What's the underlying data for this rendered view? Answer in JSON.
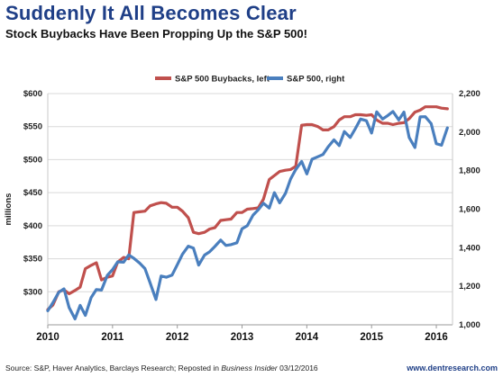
{
  "header": {
    "title": "Suddenly It All Becomes Clear",
    "subtitle": "Stock Buybacks Have Been Propping Up the S&P 500!"
  },
  "footer": {
    "source_prefix": "Source: S&P, Haver Analytics, Barclays Research; Reposted in ",
    "source_pub": "Business Insider",
    "source_date": " 03/12/2016",
    "site": "www.dentresearch.com"
  },
  "colors": {
    "buybacks": "#c0504d",
    "sp500": "#4a7fbe",
    "title": "#1f3f87",
    "grid": "#d9d9d9"
  },
  "chart_data": {
    "type": "line",
    "title": "Suddenly It All Becomes Clear",
    "subtitle": "Stock Buybacks Have Been Propping Up the S&P 500!",
    "legend_position": "top-center",
    "grid": true,
    "x_axis": {
      "range": [
        2010.0,
        2016.25
      ],
      "tick_values": [
        2010,
        2011,
        2012,
        2013,
        2014,
        2015,
        2016
      ],
      "tick_labels": [
        "2010",
        "2011",
        "2012",
        "2013",
        "2014",
        "2015",
        "2016"
      ]
    },
    "y_left": {
      "label": "millions",
      "range": [
        250,
        600
      ],
      "tick_values": [
        300,
        350,
        400,
        450,
        500,
        550,
        600
      ],
      "tick_labels": [
        "$300",
        "$350",
        "$400",
        "$450",
        "$500",
        "$550",
        "$600"
      ]
    },
    "y_right": {
      "range": [
        1000,
        2200
      ],
      "tick_values": [
        1000,
        1200,
        1400,
        1600,
        1800,
        2000,
        2200
      ],
      "tick_labels": [
        "1,000",
        "1,200",
        "1,400",
        "1,600",
        "1,800",
        "2,000",
        "2,200"
      ]
    },
    "series": [
      {
        "name": "S&P 500 Buybacks, left",
        "axis": "left",
        "color": "#c0504d",
        "x": [
          2010.0,
          2010.08,
          2010.17,
          2010.25,
          2010.33,
          2010.42,
          2010.5,
          2010.58,
          2010.67,
          2010.75,
          2010.83,
          2010.92,
          2011.0,
          2011.08,
          2011.17,
          2011.25,
          2011.33,
          2011.42,
          2011.5,
          2011.58,
          2011.67,
          2011.75,
          2011.83,
          2011.92,
          2012.0,
          2012.08,
          2012.17,
          2012.25,
          2012.33,
          2012.42,
          2012.5,
          2012.58,
          2012.67,
          2012.75,
          2012.83,
          2012.92,
          2013.0,
          2013.08,
          2013.17,
          2013.25,
          2013.33,
          2013.42,
          2013.5,
          2013.58,
          2013.67,
          2013.75,
          2013.83,
          2013.92,
          2014.0,
          2014.08,
          2014.17,
          2014.25,
          2014.33,
          2014.42,
          2014.5,
          2014.58,
          2014.67,
          2014.75,
          2014.83,
          2014.92,
          2015.0,
          2015.08,
          2015.17,
          2015.25,
          2015.33,
          2015.42,
          2015.5,
          2015.58,
          2015.67,
          2015.75,
          2015.83,
          2015.92,
          2016.0,
          2016.08,
          2016.17
        ],
        "values": [
          273,
          280,
          300,
          303,
          297,
          302,
          307,
          335,
          340,
          344,
          318,
          322,
          324,
          345,
          352,
          350,
          420,
          421,
          422,
          430,
          433,
          435,
          434,
          428,
          428,
          422,
          412,
          390,
          388,
          390,
          395,
          397,
          408,
          409,
          410,
          420,
          420,
          425,
          426,
          427,
          440,
          470,
          476,
          482,
          484,
          485,
          490,
          552,
          553,
          553,
          550,
          545,
          545,
          550,
          560,
          565,
          565,
          568,
          568,
          567,
          568,
          560,
          555,
          555,
          553,
          555,
          556,
          562,
          572,
          575,
          580,
          580,
          580,
          578,
          577
        ]
      },
      {
        "name": "S&P 500, right",
        "axis": "right",
        "color": "#4a7fbe",
        "x": [
          2010.0,
          2010.08,
          2010.17,
          2010.25,
          2010.33,
          2010.42,
          2010.5,
          2010.58,
          2010.67,
          2010.75,
          2010.83,
          2010.92,
          2011.0,
          2011.08,
          2011.17,
          2011.25,
          2011.33,
          2011.42,
          2011.5,
          2011.58,
          2011.67,
          2011.75,
          2011.83,
          2011.92,
          2012.0,
          2012.08,
          2012.17,
          2012.25,
          2012.33,
          2012.42,
          2012.5,
          2012.58,
          2012.67,
          2012.75,
          2012.83,
          2012.92,
          2013.0,
          2013.08,
          2013.17,
          2013.25,
          2013.33,
          2013.42,
          2013.5,
          2013.58,
          2013.67,
          2013.75,
          2013.83,
          2013.92,
          2014.0,
          2014.08,
          2014.17,
          2014.25,
          2014.33,
          2014.42,
          2014.5,
          2014.58,
          2014.67,
          2014.75,
          2014.83,
          2014.92,
          2015.0,
          2015.08,
          2015.17,
          2015.25,
          2015.33,
          2015.42,
          2015.5,
          2015.58,
          2015.67,
          2015.75,
          2015.83,
          2015.92,
          2016.0,
          2016.08,
          2016.17
        ],
        "values": [
          1073,
          1115,
          1169,
          1187,
          1089,
          1031,
          1101,
          1049,
          1141,
          1183,
          1180,
          1257,
          1286,
          1327,
          1325,
          1363,
          1345,
          1320,
          1292,
          1218,
          1131,
          1253,
          1247,
          1258,
          1312,
          1366,
          1408,
          1398,
          1310,
          1362,
          1379,
          1406,
          1440,
          1412,
          1416,
          1426,
          1498,
          1514,
          1569,
          1597,
          1631,
          1606,
          1686,
          1633,
          1682,
          1757,
          1806,
          1848,
          1783,
          1859,
          1872,
          1884,
          1924,
          1960,
          1930,
          2003,
          1972,
          2018,
          2068,
          2059,
          1995,
          2105,
          2068,
          2086,
          2107,
          2063,
          2104,
          1972,
          1920,
          2079,
          2080,
          2044,
          1940,
          1932,
          2022
        ]
      }
    ]
  }
}
